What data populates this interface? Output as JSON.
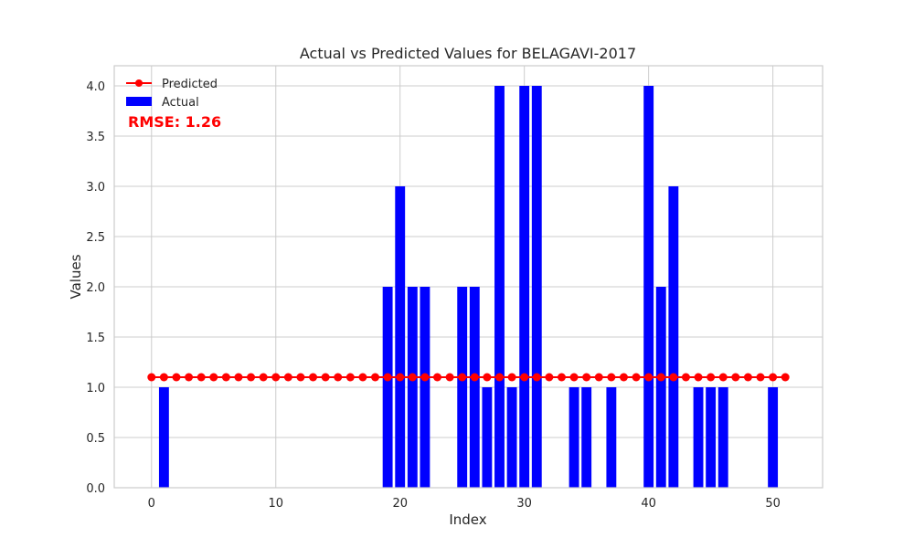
{
  "chart_data": {
    "type": "bar",
    "title": "Actual vs Predicted Values for BELAGAVI-2017",
    "xlabel": "Index",
    "ylabel": "Values",
    "xlim": [
      -3,
      54
    ],
    "ylim": [
      0,
      4.2
    ],
    "xticks": [
      "0",
      "10",
      "20",
      "30",
      "40",
      "50"
    ],
    "yticks": [
      "0.0",
      "0.5",
      "1.0",
      "1.5",
      "2.0",
      "2.5",
      "3.0",
      "3.5",
      "4.0"
    ],
    "grid": true,
    "legend_position": "top-left",
    "annotation": "RMSE: 1.26",
    "annotation_color": "#ff0000",
    "series": [
      {
        "name": "Actual",
        "type": "bar",
        "color": "#0000ff",
        "x": [
          0,
          1,
          2,
          3,
          4,
          5,
          6,
          7,
          8,
          9,
          10,
          11,
          12,
          13,
          14,
          15,
          16,
          17,
          18,
          19,
          20,
          21,
          22,
          23,
          24,
          25,
          26,
          27,
          28,
          29,
          30,
          31,
          32,
          33,
          34,
          35,
          36,
          37,
          38,
          39,
          40,
          41,
          42,
          43,
          44,
          45,
          46,
          47,
          48,
          49,
          50,
          51
        ],
        "values": [
          0,
          1,
          0,
          0,
          0,
          0,
          0,
          0,
          0,
          0,
          0,
          0,
          0,
          0,
          0,
          0,
          0,
          0,
          0,
          2,
          3,
          2,
          2,
          0,
          0,
          2,
          2,
          1,
          4,
          1,
          4,
          4,
          0,
          0,
          1,
          1,
          0,
          1,
          0,
          0,
          4,
          2,
          3,
          0,
          1,
          1,
          1,
          0,
          0,
          0,
          1,
          0
        ]
      },
      {
        "name": "Predicted",
        "type": "line",
        "color": "#ff0000",
        "x": [
          0,
          1,
          2,
          3,
          4,
          5,
          6,
          7,
          8,
          9,
          10,
          11,
          12,
          13,
          14,
          15,
          16,
          17,
          18,
          19,
          20,
          21,
          22,
          23,
          24,
          25,
          26,
          27,
          28,
          29,
          30,
          31,
          32,
          33,
          34,
          35,
          36,
          37,
          38,
          39,
          40,
          41,
          42,
          43,
          44,
          45,
          46,
          47,
          48,
          49,
          50,
          51
        ],
        "values": [
          1.1,
          1.1,
          1.1,
          1.1,
          1.1,
          1.1,
          1.1,
          1.1,
          1.1,
          1.1,
          1.1,
          1.1,
          1.1,
          1.1,
          1.1,
          1.1,
          1.1,
          1.1,
          1.1,
          1.1,
          1.1,
          1.1,
          1.1,
          1.1,
          1.1,
          1.1,
          1.1,
          1.1,
          1.1,
          1.1,
          1.1,
          1.1,
          1.1,
          1.1,
          1.1,
          1.1,
          1.1,
          1.1,
          1.1,
          1.1,
          1.1,
          1.1,
          1.1,
          1.1,
          1.1,
          1.1,
          1.1,
          1.1,
          1.1,
          1.1,
          1.1,
          1.1
        ]
      }
    ]
  }
}
